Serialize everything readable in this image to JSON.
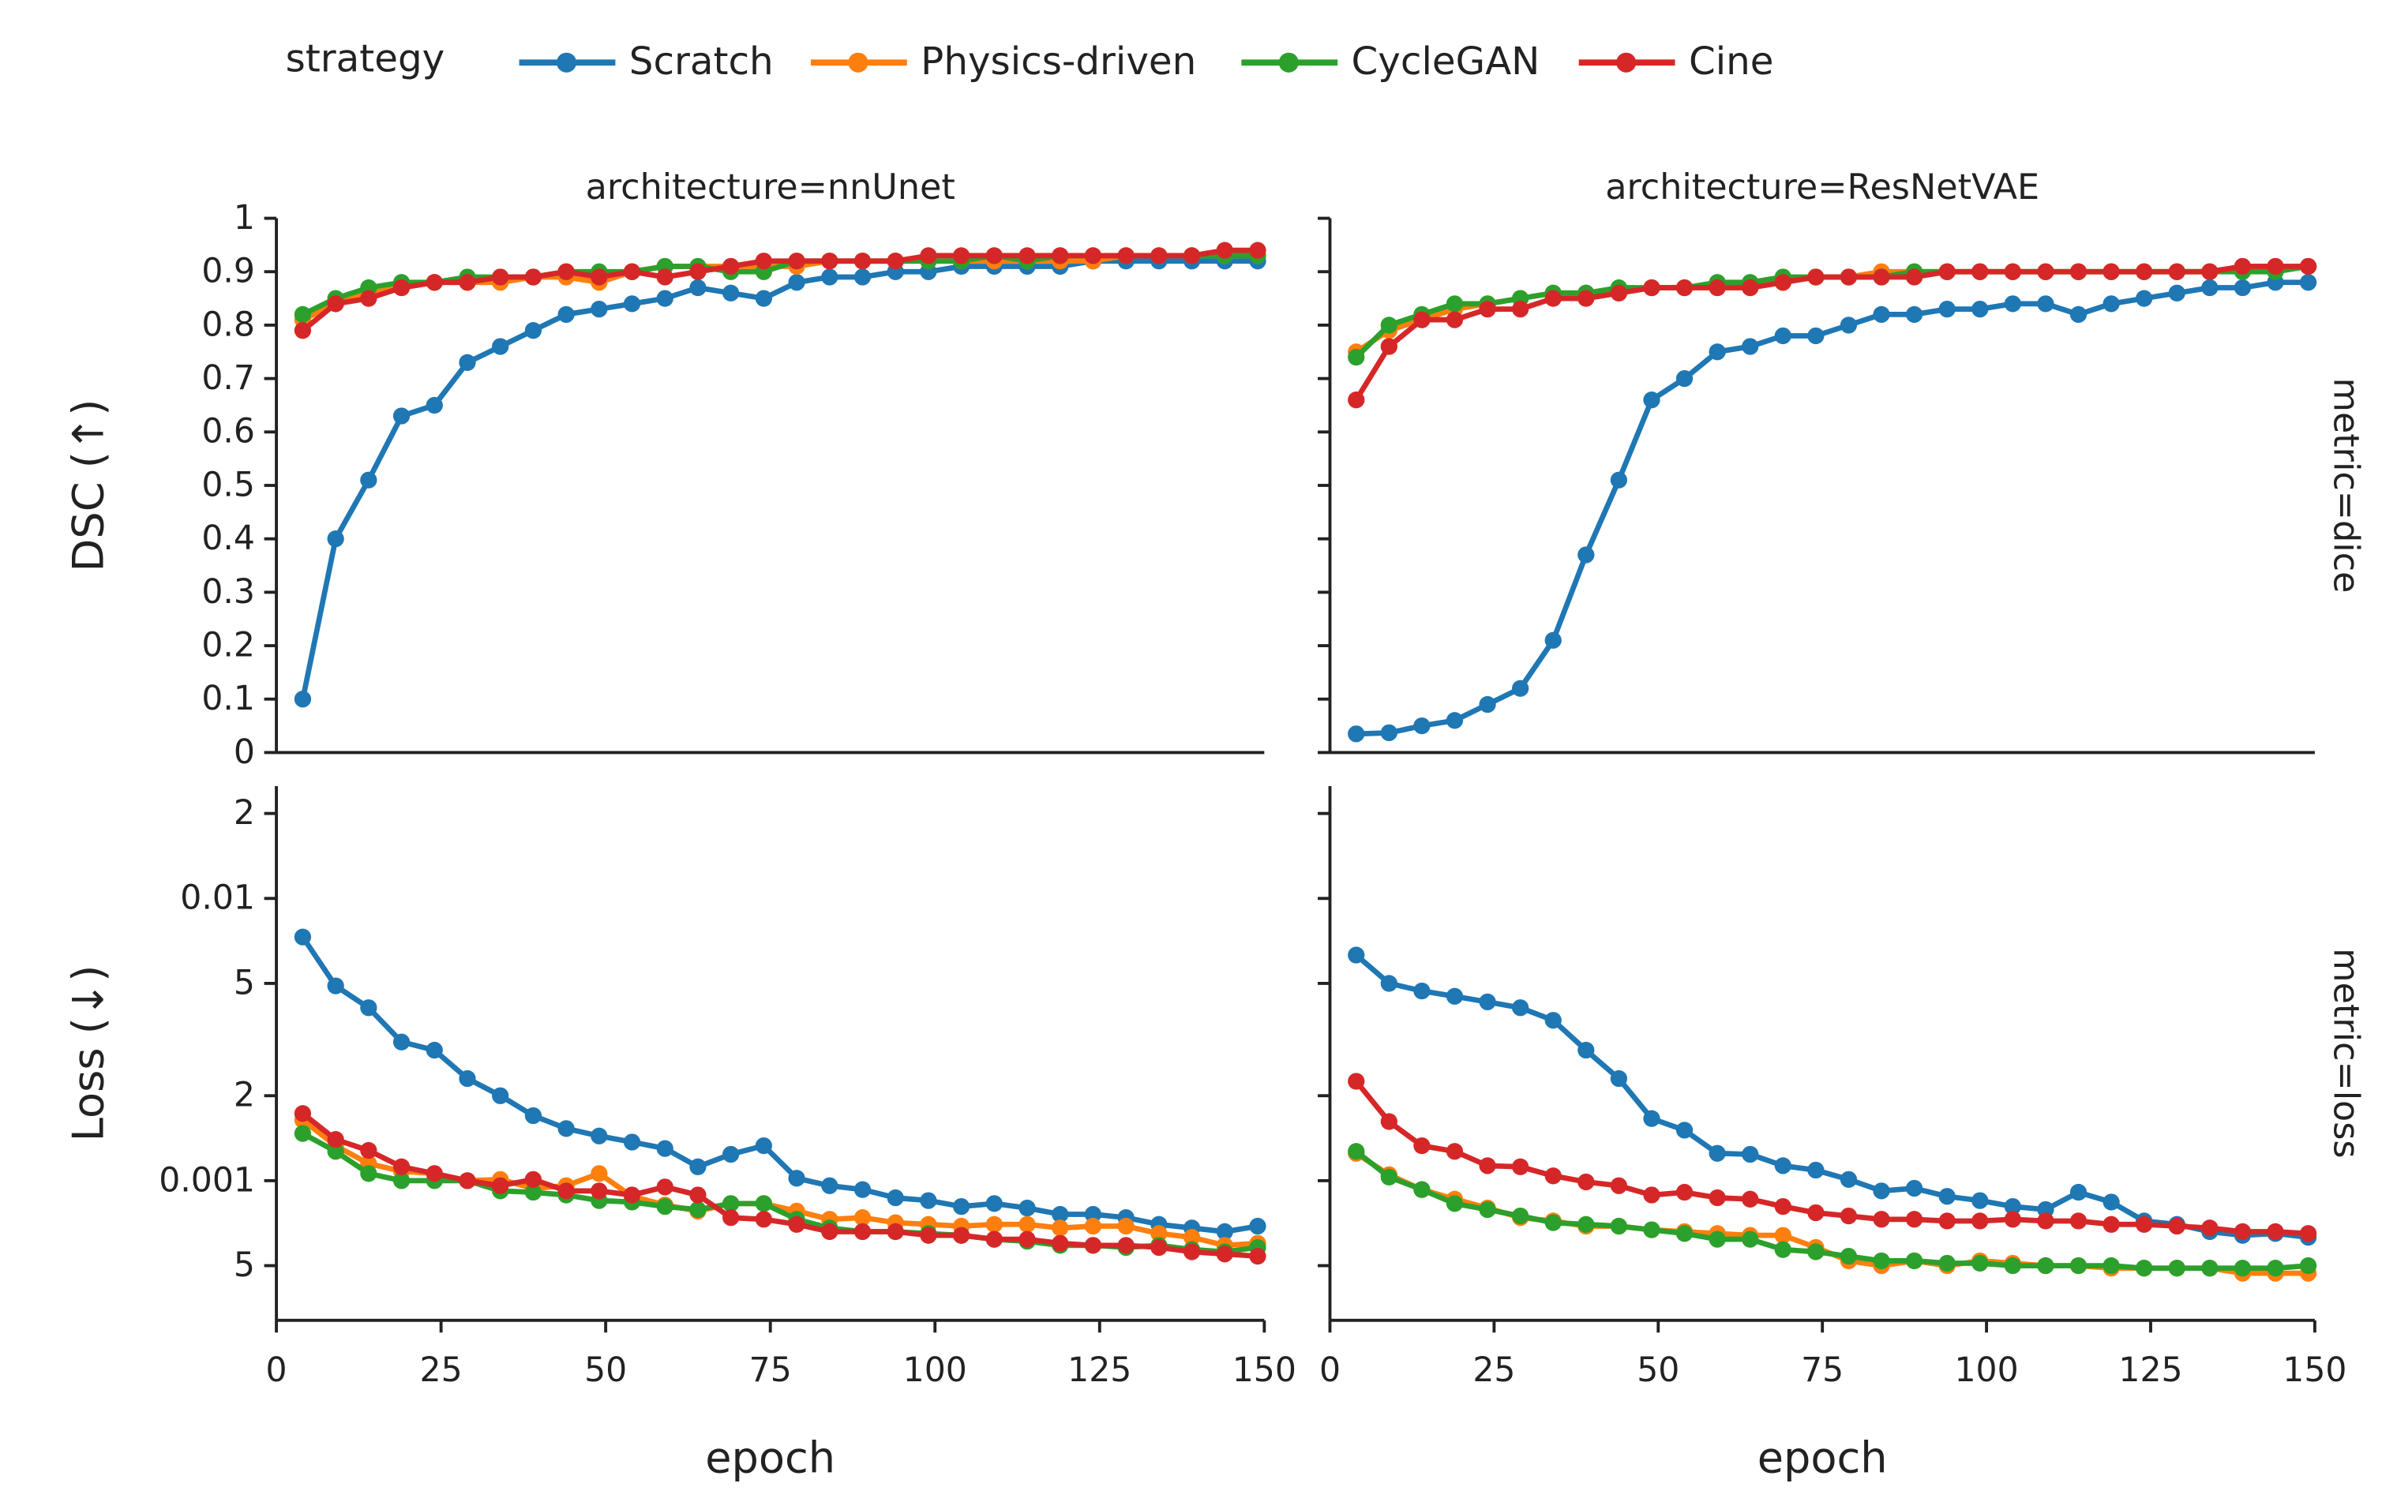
{
  "chart_data": [
    {
      "type": "line",
      "legend_title": "strategy",
      "title": "architecture=nnUnet",
      "ylabel": "DSC (↑)",
      "x": [
        4,
        9,
        14,
        19,
        24,
        29,
        34,
        39,
        44,
        49,
        54,
        59,
        64,
        69,
        74,
        79,
        84,
        89,
        94,
        99,
        104,
        109,
        114,
        119,
        124,
        129,
        134,
        139,
        144,
        149
      ],
      "xlim": [
        0,
        150
      ],
      "ylim": [
        0,
        1
      ],
      "yticks": [
        0,
        0.1,
        0.2,
        0.3,
        0.4,
        0.5,
        0.6,
        0.7,
        0.8,
        0.9,
        1
      ],
      "series": [
        {
          "name": "Scratch",
          "color": "#1f77b4",
          "values": [
            0.1,
            0.4,
            0.51,
            0.63,
            0.65,
            0.73,
            0.76,
            0.79,
            0.82,
            0.83,
            0.84,
            0.85,
            0.87,
            0.86,
            0.85,
            0.88,
            0.89,
            0.89,
            0.9,
            0.9,
            0.91,
            0.91,
            0.91,
            0.91,
            0.92,
            0.92,
            0.92,
            0.92,
            0.92,
            0.92
          ]
        },
        {
          "name": "Physics-driven",
          "color": "#ff7f0e",
          "values": [
            0.81,
            0.84,
            0.86,
            0.87,
            0.88,
            0.88,
            0.88,
            0.89,
            0.89,
            0.88,
            0.9,
            0.91,
            0.91,
            0.91,
            0.91,
            0.91,
            0.92,
            0.92,
            0.92,
            0.92,
            0.92,
            0.92,
            0.92,
            0.92,
            0.92,
            0.93,
            0.93,
            0.93,
            0.93,
            0.93
          ]
        },
        {
          "name": "CycleGAN",
          "color": "#2ca02c",
          "values": [
            0.82,
            0.85,
            0.87,
            0.88,
            0.88,
            0.89,
            0.89,
            0.89,
            0.9,
            0.9,
            0.9,
            0.91,
            0.91,
            0.9,
            0.9,
            0.92,
            0.92,
            0.92,
            0.92,
            0.92,
            0.92,
            0.93,
            0.92,
            0.93,
            0.93,
            0.93,
            0.93,
            0.93,
            0.93,
            0.93
          ]
        },
        {
          "name": "Cine",
          "color": "#d62728",
          "values": [
            0.79,
            0.84,
            0.85,
            0.87,
            0.88,
            0.88,
            0.89,
            0.89,
            0.9,
            0.89,
            0.9,
            0.89,
            0.9,
            0.91,
            0.92,
            0.92,
            0.92,
            0.92,
            0.92,
            0.93,
            0.93,
            0.93,
            0.93,
            0.93,
            0.93,
            0.93,
            0.93,
            0.93,
            0.94,
            0.94
          ]
        }
      ]
    },
    {
      "type": "line",
      "title": "architecture=ResNetVAE",
      "row_label": "metric=dice",
      "x": [
        4,
        9,
        14,
        19,
        24,
        29,
        34,
        39,
        44,
        49,
        54,
        59,
        64,
        69,
        74,
        79,
        84,
        89,
        94,
        99,
        104,
        109,
        114,
        119,
        124,
        129,
        134,
        139,
        144,
        149
      ],
      "xlim": [
        0,
        150
      ],
      "ylim": [
        0,
        1
      ],
      "series": [
        {
          "color": "#1f77b4",
          "values": [
            0.035,
            0.037,
            0.05,
            0.06,
            0.09,
            0.12,
            0.21,
            0.37,
            0.51,
            0.66,
            0.7,
            0.75,
            0.76,
            0.78,
            0.78,
            0.8,
            0.82,
            0.82,
            0.83,
            0.83,
            0.84,
            0.84,
            0.82,
            0.84,
            0.85,
            0.86,
            0.87,
            0.87,
            0.88,
            0.88
          ]
        },
        {
          "color": "#ff7f0e",
          "values": [
            0.75,
            0.79,
            0.81,
            0.83,
            0.84,
            0.85,
            0.86,
            0.86,
            0.86,
            0.87,
            0.87,
            0.87,
            0.87,
            0.88,
            0.89,
            0.89,
            0.9,
            0.9,
            0.9,
            0.9,
            0.9,
            0.9,
            0.9,
            0.9,
            0.9,
            0.9,
            0.9,
            0.91,
            0.91,
            0.91
          ]
        },
        {
          "color": "#2ca02c",
          "values": [
            0.74,
            0.8,
            0.82,
            0.84,
            0.84,
            0.85,
            0.86,
            0.86,
            0.87,
            0.87,
            0.87,
            0.88,
            0.88,
            0.89,
            0.89,
            0.89,
            0.89,
            0.9,
            0.9,
            0.9,
            0.9,
            0.9,
            0.9,
            0.9,
            0.9,
            0.9,
            0.9,
            0.9,
            0.9,
            0.91
          ]
        },
        {
          "color": "#d62728",
          "values": [
            0.66,
            0.76,
            0.81,
            0.81,
            0.83,
            0.83,
            0.85,
            0.85,
            0.86,
            0.87,
            0.87,
            0.87,
            0.87,
            0.88,
            0.89,
            0.89,
            0.89,
            0.89,
            0.9,
            0.9,
            0.9,
            0.9,
            0.9,
            0.9,
            0.9,
            0.9,
            0.9,
            0.91,
            0.91,
            0.91
          ]
        }
      ]
    },
    {
      "type": "line",
      "ylabel": "Loss (↓)",
      "xlabel": "epoch",
      "log_y": true,
      "x": [
        4,
        9,
        14,
        19,
        24,
        29,
        34,
        39,
        44,
        49,
        54,
        59,
        64,
        69,
        74,
        79,
        84,
        89,
        94,
        99,
        104,
        109,
        114,
        119,
        124,
        129,
        134,
        139,
        144,
        149
      ],
      "xlim": [
        0,
        150
      ],
      "xticks": [
        0,
        25,
        50,
        75,
        100,
        125,
        150
      ],
      "ylim": [
        0.00032,
        0.025
      ],
      "yticks": [
        {
          "value": 0.02,
          "label": "2"
        },
        0.01,
        {
          "value": 0.005,
          "label": "5"
        },
        {
          "value": 0.002,
          "label": "2"
        },
        0.001,
        {
          "value": 0.0005,
          "label": "5"
        }
      ],
      "series": [
        {
          "color": "#1f77b4",
          "values": [
            0.0073,
            0.0049,
            0.0041,
            0.0031,
            0.0029,
            0.0023,
            0.002,
            0.0017,
            0.00153,
            0.00144,
            0.00137,
            0.0013,
            0.00112,
            0.00124,
            0.00133,
            0.00102,
            0.00096,
            0.00093,
            0.00087,
            0.00085,
            0.00081,
            0.00083,
            0.0008,
            0.00076,
            0.00076,
            0.00074,
            0.0007,
            0.00068,
            0.00066,
            0.00069
          ]
        },
        {
          "color": "#ff7f0e",
          "values": [
            0.00164,
            0.00133,
            0.00115,
            0.00108,
            0.00106,
            0.001,
            0.00101,
            0.00094,
            0.00096,
            0.00106,
            0.00088,
            0.00082,
            0.00078,
            0.00083,
            0.00083,
            0.00078,
            0.00073,
            0.00074,
            0.00071,
            0.0007,
            0.00069,
            0.0007,
            0.0007,
            0.00068,
            0.00069,
            0.00069,
            0.00065,
            0.00063,
            0.00059,
            0.0006
          ]
        },
        {
          "color": "#2ca02c",
          "values": [
            0.00147,
            0.00127,
            0.00106,
            0.001,
            0.001,
            0.001,
            0.00092,
            0.00091,
            0.00089,
            0.00085,
            0.00084,
            0.00081,
            0.00079,
            0.00083,
            0.00083,
            0.00073,
            0.00068,
            0.00066,
            0.00066,
            0.00065,
            0.00064,
            0.00062,
            0.00061,
            0.00059,
            0.00059,
            0.00058,
            0.00059,
            0.00057,
            0.00056,
            0.00058
          ]
        },
        {
          "color": "#d62728",
          "values": [
            0.00173,
            0.0014,
            0.00128,
            0.00112,
            0.00106,
            0.001,
            0.00096,
            0.00101,
            0.00092,
            0.00092,
            0.00089,
            0.00095,
            0.00089,
            0.00074,
            0.00073,
            0.0007,
            0.00066,
            0.00066,
            0.00066,
            0.00064,
            0.00064,
            0.00062,
            0.00062,
            0.0006,
            0.00059,
            0.00059,
            0.00058,
            0.00056,
            0.00055,
            0.00054
          ]
        }
      ]
    },
    {
      "type": "line",
      "row_label": "metric=loss",
      "xlabel": "epoch",
      "log_y": true,
      "x": [
        4,
        9,
        14,
        19,
        24,
        29,
        34,
        39,
        44,
        49,
        54,
        59,
        64,
        69,
        74,
        79,
        84,
        89,
        94,
        99,
        104,
        109,
        114,
        119,
        124,
        129,
        134,
        139,
        144,
        149
      ],
      "xlim": [
        0,
        150
      ],
      "xticks": [
        0,
        25,
        50,
        75,
        100,
        125,
        150
      ],
      "ylim": [
        0.00032,
        0.025
      ],
      "series": [
        {
          "color": "#1f77b4",
          "values": [
            0.0063,
            0.005,
            0.0047,
            0.0045,
            0.0043,
            0.0041,
            0.0037,
            0.0029,
            0.0023,
            0.00166,
            0.00151,
            0.00125,
            0.00124,
            0.00113,
            0.00109,
            0.00101,
            0.00092,
            0.00094,
            0.00088,
            0.00085,
            0.00081,
            0.00079,
            0.00091,
            0.00084,
            0.00072,
            0.0007,
            0.00066,
            0.00064,
            0.00065,
            0.00063
          ]
        },
        {
          "color": "#ff7f0e",
          "values": [
            0.00125,
            0.00105,
            0.00093,
            0.00086,
            0.0008,
            0.00074,
            0.00072,
            0.00069,
            0.00069,
            0.00067,
            0.00066,
            0.00065,
            0.00064,
            0.00064,
            0.00058,
            0.00052,
            0.0005,
            0.00052,
            0.0005,
            0.00052,
            0.00051,
            0.0005,
            0.0005,
            0.00049,
            0.00049,
            0.00049,
            0.00049,
            0.00047,
            0.00047,
            0.00047
          ]
        },
        {
          "color": "#2ca02c",
          "values": [
            0.00127,
            0.00103,
            0.00093,
            0.00083,
            0.00079,
            0.00075,
            0.00071,
            0.0007,
            0.00069,
            0.00067,
            0.00065,
            0.00062,
            0.00062,
            0.00057,
            0.00056,
            0.00054,
            0.00052,
            0.00052,
            0.00051,
            0.00051,
            0.0005,
            0.0005,
            0.0005,
            0.0005,
            0.00049,
            0.00049,
            0.00049,
            0.00049,
            0.00049,
            0.0005
          ]
        },
        {
          "color": "#d62728",
          "values": [
            0.00225,
            0.00162,
            0.00133,
            0.00127,
            0.00113,
            0.00112,
            0.00104,
            0.00099,
            0.00096,
            0.00089,
            0.00091,
            0.00087,
            0.00086,
            0.00081,
            0.00077,
            0.00075,
            0.00073,
            0.00073,
            0.00072,
            0.00072,
            0.00073,
            0.00072,
            0.00072,
            0.0007,
            0.0007,
            0.00069,
            0.00068,
            0.00066,
            0.00066,
            0.00065
          ]
        }
      ]
    }
  ]
}
